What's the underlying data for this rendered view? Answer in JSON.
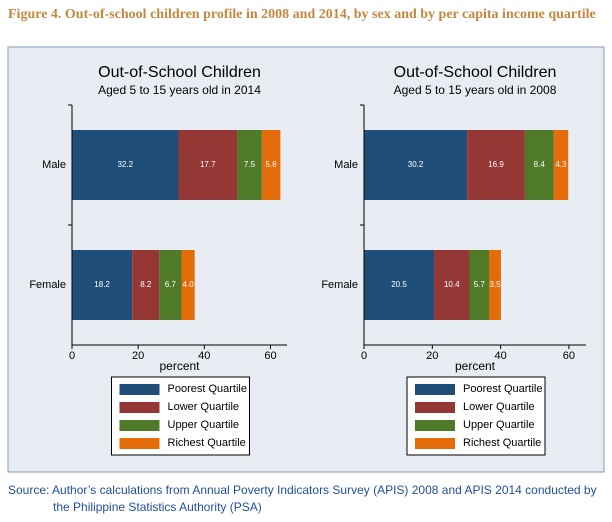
{
  "figure_title": "Figure 4. Out-of-school children profile in 2008 and 2014, by sex and by per capita income quartile",
  "source": "Source: Author’s calculations from Annual Poverty Indicators Survey (APIS) 2008 and APIS 2014 conducted by the Philippine Statistics Authority (PSA)",
  "chart_data": [
    {
      "type": "stacked-barh",
      "title": "Out-of-School Children",
      "subtitle": "Aged 5 to 15 years old in 2014",
      "xlabel": "percent",
      "categories": [
        "Male",
        "Female"
      ],
      "series": [
        {
          "name": "Poorest Quartile",
          "color": "#1f4e79",
          "values": [
            32.2,
            18.2
          ]
        },
        {
          "name": "Lower Quartile",
          "color": "#953735",
          "values": [
            17.7,
            8.2
          ]
        },
        {
          "name": "Upper Quartile",
          "color": "#4f7a28",
          "values": [
            7.5,
            6.7
          ]
        },
        {
          "name": "Richest Quartile",
          "color": "#e46c0a",
          "values": [
            5.6,
            4.0
          ],
          "value_labels": [
            "5.6",
            "4.0"
          ]
        }
      ],
      "xlim": [
        0,
        65
      ],
      "xticks": [
        0,
        20,
        40,
        60
      ]
    },
    {
      "type": "stacked-barh",
      "title": "Out-of-School Children",
      "subtitle": "Aged 5 to 15 years old in 2008",
      "xlabel": "percent",
      "categories": [
        "Male",
        "Female"
      ],
      "series": [
        {
          "name": "Poorest Quartile",
          "color": "#1f4e79",
          "values": [
            30.2,
            20.5
          ]
        },
        {
          "name": "Lower Quartile",
          "color": "#953735",
          "values": [
            16.9,
            10.4
          ]
        },
        {
          "name": "Upper Quartile",
          "color": "#4f7a28",
          "values": [
            8.4,
            5.7
          ]
        },
        {
          "name": "Richest Quartile",
          "color": "#e46c0a",
          "values": [
            4.3,
            3.5
          ]
        }
      ],
      "xlim": [
        0,
        65
      ],
      "xticks": [
        0,
        20,
        40,
        60
      ]
    }
  ]
}
